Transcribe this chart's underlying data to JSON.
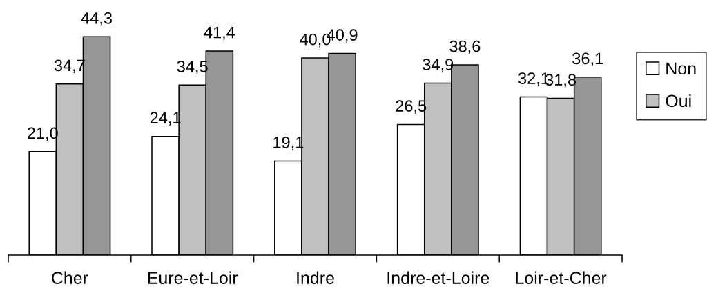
{
  "chart_data": {
    "type": "bar",
    "categories": [
      "Cher",
      "Eure-et-Loir",
      "Indre",
      "Indre-et-Loire",
      "Loir-et-Cher"
    ],
    "series": [
      {
        "name": "Non",
        "color": "#ffffff",
        "values": [
          21.0,
          24.1,
          19.1,
          26.5,
          32.1
        ],
        "value_labels": [
          "21,0",
          "24,1",
          "19,1",
          "26,5",
          "32,1"
        ]
      },
      {
        "name": "Oui",
        "color": "#c0c0c0",
        "values": [
          34.7,
          34.5,
          40.0,
          34.9,
          31.8
        ],
        "value_labels": [
          "34,7",
          "34,5",
          "40,0",
          "34,9",
          "31,8"
        ]
      },
      {
        "color": "#969696",
        "values": [
          44.3,
          41.4,
          40.9,
          38.6,
          36.1
        ],
        "value_labels": [
          "44,3",
          "41,4",
          "40,9",
          "38,6",
          "36,1"
        ]
      }
    ],
    "tick_labels": "x",
    "legend": "right"
  }
}
